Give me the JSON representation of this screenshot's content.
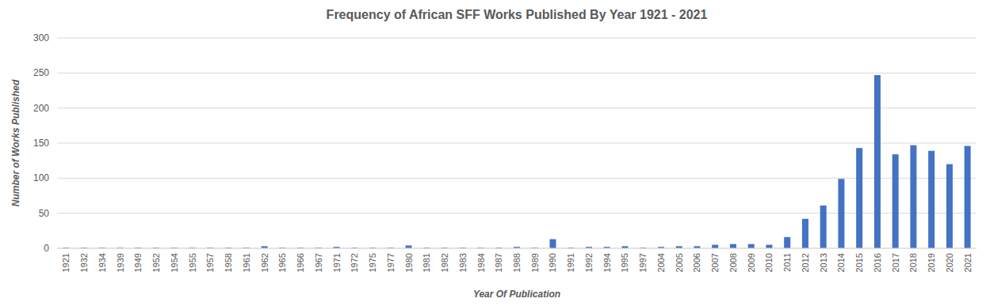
{
  "chart_data": {
    "type": "bar",
    "title": "Frequency of African SFF Works Published By Year 1921 - 2021",
    "x_label": "Year Of Publication",
    "y_label": "Number of Works Published",
    "categories": [
      "1921",
      "1932",
      "1934",
      "1939",
      "1949",
      "1952",
      "1954",
      "1955",
      "1957",
      "1958",
      "1961",
      "1962",
      "1965",
      "1966",
      "1967",
      "1971",
      "1972",
      "1975",
      "1977",
      "1980",
      "1981",
      "1982",
      "1983",
      "1984",
      "1987",
      "1988",
      "1989",
      "1990",
      "1991",
      "1992",
      "1994",
      "1995",
      "1997",
      "2004",
      "2005",
      "2006",
      "2007",
      "2008",
      "2009",
      "2010",
      "2011",
      "2012",
      "2013",
      "2014",
      "2015",
      "2016",
      "2017",
      "2018",
      "2019",
      "2020",
      "2021"
    ],
    "values": [
      1,
      1,
      1,
      1,
      1,
      1,
      1,
      1,
      1,
      1,
      1,
      3,
      1,
      1,
      1,
      2,
      1,
      1,
      1,
      4,
      1,
      1,
      1,
      1,
      1,
      2,
      1,
      13,
      1,
      2,
      2,
      3,
      1,
      2,
      3,
      3,
      5,
      6,
      6,
      5,
      16,
      42,
      61,
      99,
      143,
      247,
      134,
      147,
      139,
      120,
      146
    ],
    "color": "#4472c4",
    "ylim": [
      0,
      300
    ],
    "yticks": [
      0,
      50,
      100,
      150,
      200,
      250,
      300
    ],
    "grid": true
  }
}
